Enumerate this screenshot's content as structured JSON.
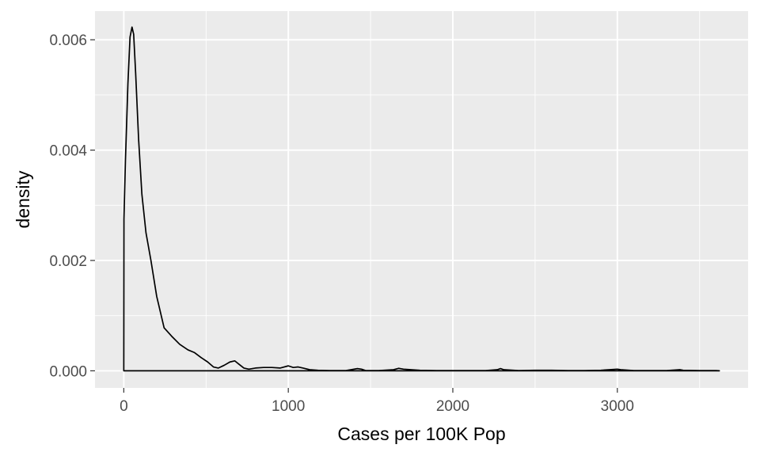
{
  "chart_data": {
    "type": "area",
    "geom": "density",
    "title": "",
    "xlabel": "Cases per 100K Pop",
    "ylabel": "density",
    "xlim": [
      -175,
      3795
    ],
    "ylim": [
      -0.00031,
      0.00652
    ],
    "x_ticks": [
      0,
      1000,
      2000,
      3000
    ],
    "x_tick_labels": [
      "0",
      "1000",
      "2000",
      "3000"
    ],
    "x_minor_ticks": [
      500,
      1500,
      2500,
      3500
    ],
    "y_ticks": [
      0,
      0.002,
      0.004,
      0.006
    ],
    "y_tick_labels": [
      "0.000",
      "0.002",
      "0.004",
      "0.006"
    ],
    "y_minor_ticks": [
      0.001,
      0.003,
      0.005
    ],
    "grid": true,
    "colors": {
      "panel": "#ebebeb",
      "grid": "#ffffff",
      "line": "#000000",
      "text": "#4d4d4d"
    },
    "series": [
      {
        "name": "density",
        "x": [
          0,
          1,
          10,
          25,
          38,
          50,
          60,
          72,
          90,
          110,
          135,
          165,
          200,
          245,
          290,
          340,
          390,
          430,
          470,
          510,
          545,
          575,
          610,
          645,
          675,
          700,
          730,
          760,
          800,
          850,
          900,
          950,
          1000,
          1030,
          1060,
          1090,
          1130,
          1180,
          1250,
          1350,
          1420,
          1445,
          1470,
          1550,
          1640,
          1670,
          1700,
          1800,
          1900,
          2000,
          2100,
          2200,
          2270,
          2290,
          2310,
          2400,
          2500,
          2600,
          2700,
          2800,
          2900,
          3000,
          3020,
          3100,
          3200,
          3300,
          3380,
          3400,
          3500,
          3600,
          3620
        ],
        "y": [
          0,
          0.00275,
          0.0038,
          0.0052,
          0.00605,
          0.00623,
          0.0061,
          0.0054,
          0.0042,
          0.0032,
          0.0025,
          0.002,
          0.00135,
          0.00078,
          0.00063,
          0.00048,
          0.00038,
          0.00033,
          0.00024,
          0.00016,
          7e-05,
          5e-05,
          0.0001,
          0.00016,
          0.00018,
          0.00012,
          5e-05,
          3e-05,
          5e-05,
          6e-05,
          6e-05,
          5e-05,
          9e-05,
          6e-05,
          7e-05,
          5e-05,
          2e-05,
          1e-05,
          5e-06,
          5e-06,
          4e-05,
          3e-05,
          5e-06,
          5e-06,
          2e-05,
          4.5e-05,
          3e-05,
          1e-05,
          5e-06,
          5e-06,
          5e-06,
          5e-06,
          2e-05,
          4e-05,
          2e-05,
          5e-06,
          1e-05,
          1e-05,
          5e-06,
          5e-06,
          1e-05,
          3e-05,
          2e-05,
          5e-06,
          5e-06,
          5e-06,
          2e-05,
          1e-05,
          5e-06,
          5e-06,
          0
        ]
      }
    ]
  }
}
